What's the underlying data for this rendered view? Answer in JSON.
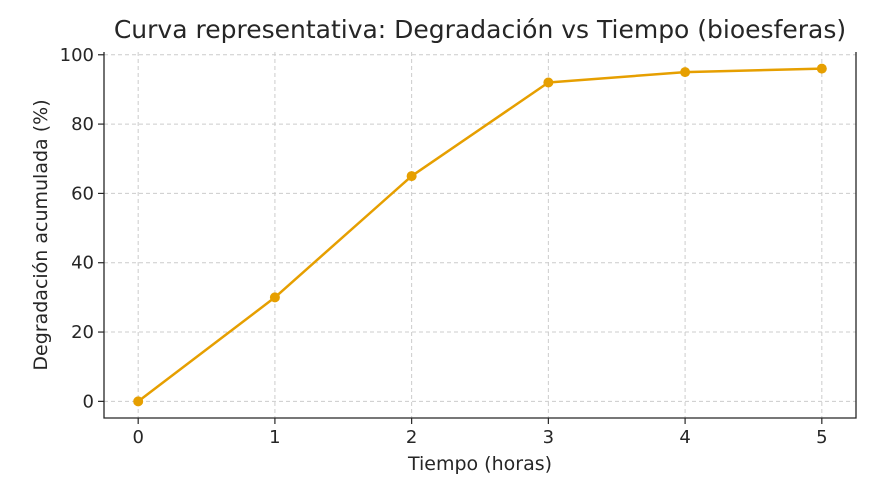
{
  "chart_data": {
    "type": "line",
    "title": "Curva representativa: Degradación vs Tiempo (bioesferas)",
    "xlabel": "Tiempo (horas)",
    "ylabel": "Degradación acumulada (%)",
    "x": [
      0,
      1,
      2,
      3,
      4,
      5
    ],
    "series": [
      {
        "values": [
          0,
          30,
          65,
          92,
          95,
          96
        ],
        "color": "#e69f00",
        "marker": "circle"
      }
    ],
    "xticks": [
      0,
      1,
      2,
      3,
      4,
      5
    ],
    "yticks": [
      0,
      20,
      40,
      60,
      80,
      100
    ],
    "xlim": [
      -0.25,
      5.25
    ],
    "ylim": [
      -4.8,
      100.8
    ],
    "grid": true,
    "legend": "none"
  }
}
